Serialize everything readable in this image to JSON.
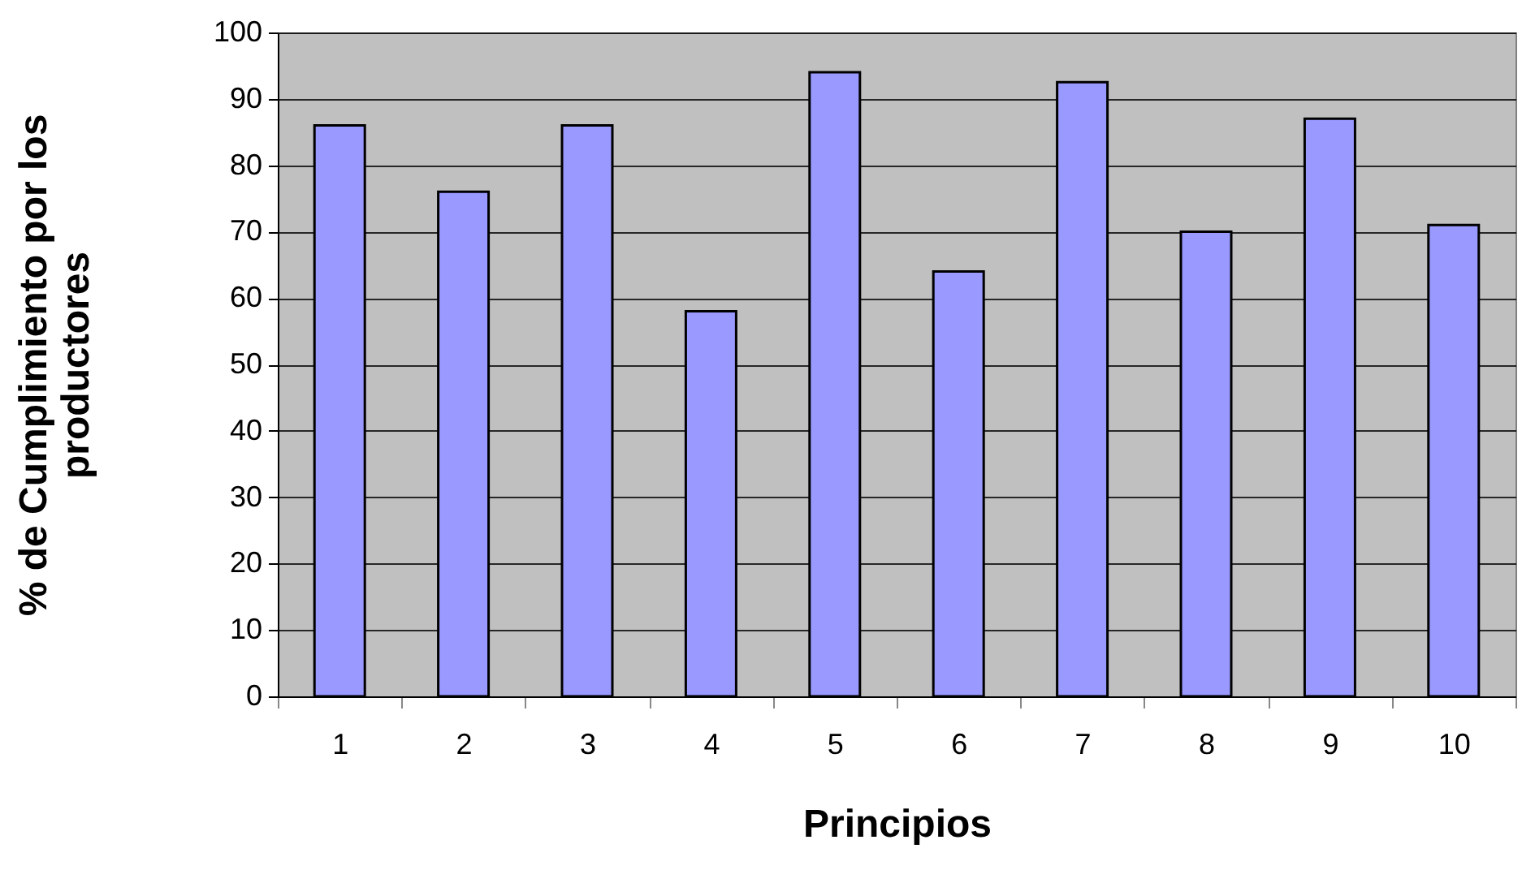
{
  "chart_data": {
    "type": "bar",
    "xlabel": "Principios",
    "ylabel": "% de Cumplimiento por los productores",
    "categories": [
      "1",
      "2",
      "3",
      "4",
      "5",
      "6",
      "7",
      "8",
      "9",
      "10"
    ],
    "values": [
      86,
      76,
      86,
      58,
      94,
      64,
      92.5,
      70,
      87,
      71
    ],
    "color": "#9999ff",
    "ylim": [
      0,
      100
    ],
    "yticks": [
      0,
      10,
      20,
      30,
      40,
      50,
      60,
      70,
      80,
      90,
      100
    ],
    "grid": "y"
  }
}
